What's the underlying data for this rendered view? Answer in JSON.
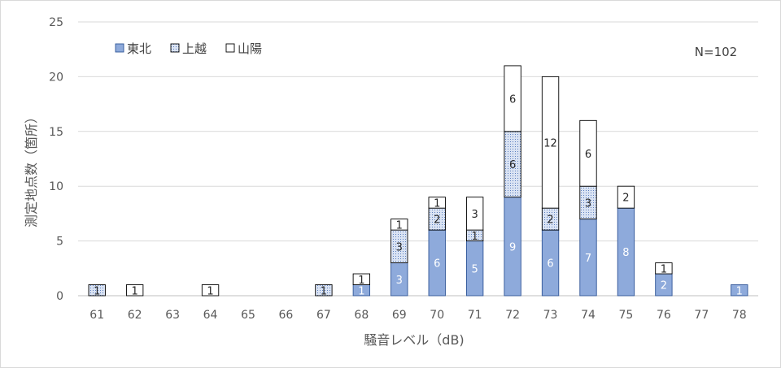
{
  "chart_data": {
    "type": "bar",
    "stacked": true,
    "title": "",
    "xlabel": "騒音レベル（dB)",
    "ylabel": "測定地点数（箇所）",
    "annotation": "N=102",
    "ylim": [
      0,
      25
    ],
    "yticks": [
      0,
      5,
      10,
      15,
      20,
      25
    ],
    "grid": true,
    "legend_position": "top-left",
    "categories": [
      "61",
      "62",
      "63",
      "64",
      "65",
      "66",
      "67",
      "68",
      "69",
      "70",
      "71",
      "72",
      "73",
      "74",
      "75",
      "76",
      "77",
      "78"
    ],
    "series": [
      {
        "name": "東北",
        "color": "#8eaadb",
        "pattern": "solid",
        "values": [
          0,
          0,
          0,
          0,
          0,
          0,
          0,
          1,
          3,
          6,
          5,
          9,
          6,
          7,
          8,
          2,
          0,
          1
        ]
      },
      {
        "name": "上越",
        "color": "#dae3f3",
        "pattern": "dotted",
        "values": [
          1,
          0,
          0,
          0,
          0,
          0,
          1,
          0,
          3,
          2,
          1,
          6,
          2,
          3,
          0,
          0,
          0,
          0
        ]
      },
      {
        "name": "山陽",
        "color": "#ffffff",
        "pattern": "none",
        "values": [
          0,
          1,
          0,
          1,
          0,
          0,
          0,
          1,
          1,
          1,
          3,
          6,
          12,
          6,
          2,
          1,
          0,
          0
        ]
      }
    ]
  }
}
